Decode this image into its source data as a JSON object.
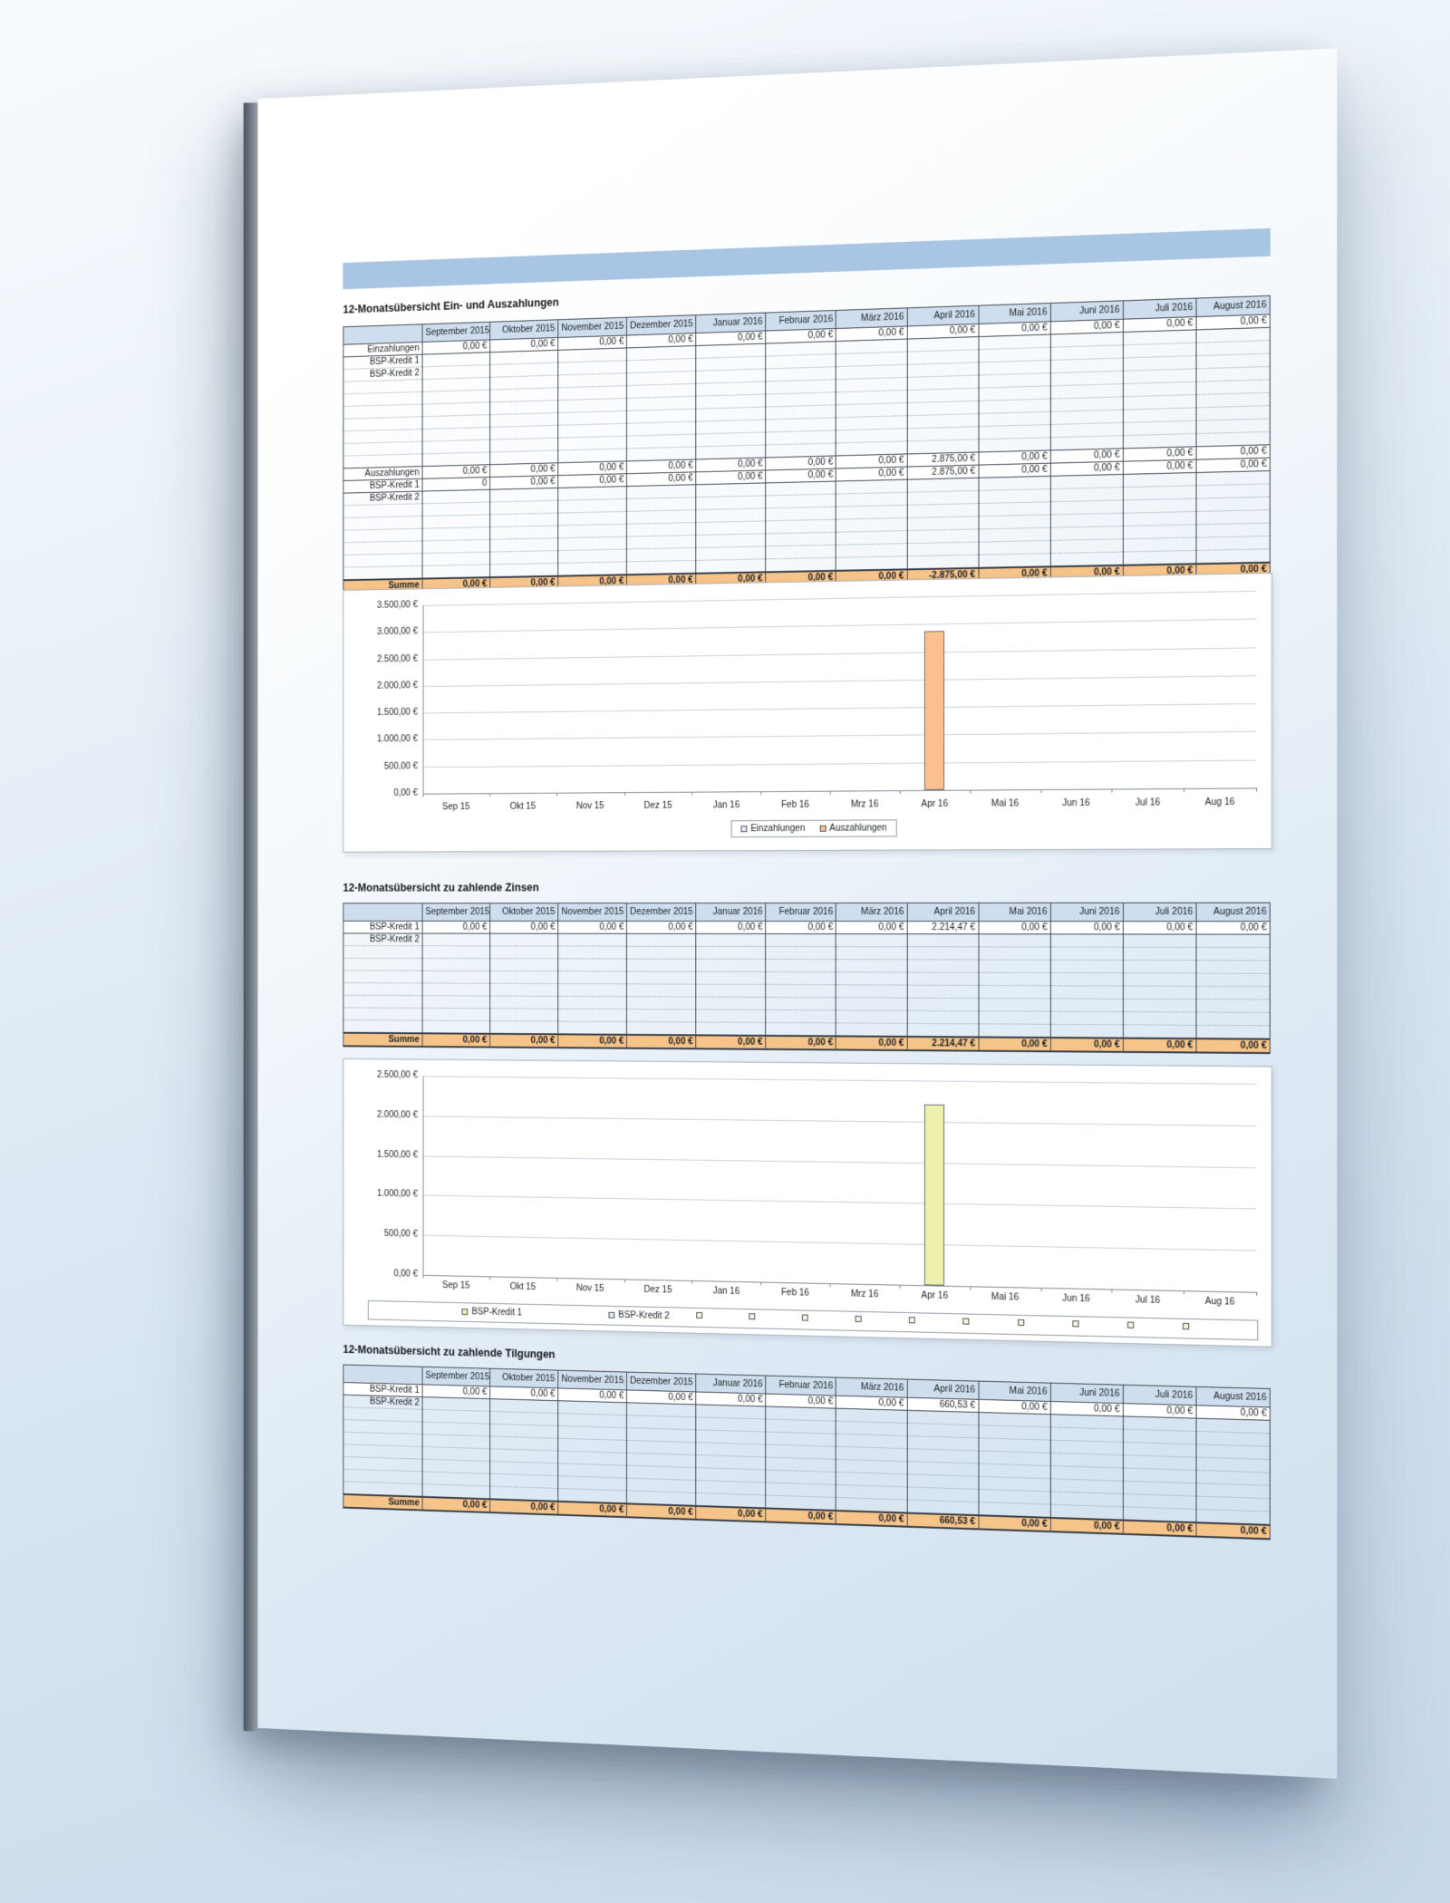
{
  "colors": {
    "band": "#a9c5e4",
    "table_header_bg": "#cfdeef",
    "sum_row_bg": "#f6c389",
    "bar_auszahlungen": "#fac090",
    "bar_bsp_kredit_1": "#eef0ae",
    "legend_marker_light": "#e4ebf4"
  },
  "months_long": [
    "September 2015",
    "Oktober 2015",
    "November 2015",
    "Dezember 2015",
    "Januar 2016",
    "Februar 2016",
    "März 2016",
    "April 2016",
    "Mai 2016",
    "Juni 2016",
    "Juli 2016",
    "August 2016"
  ],
  "tables": [
    {
      "title": "12-Monatsübersicht Ein- und Auszahlungen",
      "rows": [
        {
          "type": "value",
          "label": "Einzahlungen",
          "values": [
            "0,00 €",
            "0,00 €",
            "0,00 €",
            "0,00 €",
            "0,00 €",
            "0,00 €",
            "0,00 €",
            "0,00 €",
            "0,00 €",
            "0,00 €",
            "0,00 €",
            "0,00 €"
          ]
        },
        {
          "type": "label",
          "label": "BSP-Kredit 1"
        },
        {
          "type": "label",
          "label": "BSP-Kredit 2"
        },
        {
          "type": "filler"
        },
        {
          "type": "filler"
        },
        {
          "type": "filler"
        },
        {
          "type": "filler"
        },
        {
          "type": "filler"
        },
        {
          "type": "filler"
        },
        {
          "type": "filler"
        },
        {
          "type": "value",
          "label": "Auszahlungen",
          "values": [
            "0,00 €",
            "0,00 €",
            "0,00 €",
            "0,00 €",
            "0,00 €",
            "0,00 €",
            "0,00 €",
            "2.875,00 €",
            "0,00 €",
            "0,00 €",
            "0,00 €",
            "0,00 €"
          ]
        },
        {
          "type": "value",
          "label": "BSP-Kredit 1",
          "values": [
            "0",
            "0,00 €",
            "0,00 €",
            "0,00 €",
            "0,00 €",
            "0,00 €",
            "0,00 €",
            "2.875,00 €",
            "0,00 €",
            "0,00 €",
            "0,00 €",
            "0,00 €"
          ]
        },
        {
          "type": "label",
          "label": "BSP-Kredit 2"
        },
        {
          "type": "filler"
        },
        {
          "type": "filler"
        },
        {
          "type": "filler"
        },
        {
          "type": "filler"
        },
        {
          "type": "filler"
        },
        {
          "type": "filler"
        },
        {
          "type": "sum",
          "label": "Summe",
          "values": [
            "0,00 €",
            "0,00 €",
            "0,00 €",
            "0,00 €",
            "0,00 €",
            "0,00 €",
            "0,00 €",
            "-2.875,00 €",
            "0,00 €",
            "0,00 €",
            "0,00 €",
            "0,00 €"
          ]
        }
      ]
    },
    {
      "title": "12-Monatsübersicht zu zahlende Zinsen",
      "rows": [
        {
          "type": "value",
          "label": "BSP-Kredit 1",
          "values": [
            "0,00 €",
            "0,00 €",
            "0,00 €",
            "0,00 €",
            "0,00 €",
            "0,00 €",
            "0,00 €",
            "2.214,47 €",
            "0,00 €",
            "0,00 €",
            "0,00 €",
            "0,00 €"
          ]
        },
        {
          "type": "label",
          "label": "BSP-Kredit 2"
        },
        {
          "type": "filler"
        },
        {
          "type": "filler"
        },
        {
          "type": "filler"
        },
        {
          "type": "filler"
        },
        {
          "type": "filler"
        },
        {
          "type": "filler"
        },
        {
          "type": "filler"
        },
        {
          "type": "sum",
          "label": "Summe",
          "values": [
            "0,00 €",
            "0,00 €",
            "0,00 €",
            "0,00 €",
            "0,00 €",
            "0,00 €",
            "0,00 €",
            "2.214,47 €",
            "0,00 €",
            "0,00 €",
            "0,00 €",
            "0,00 €"
          ]
        }
      ]
    },
    {
      "title": "12-Monatsübersicht zu zahlende Tilgungen",
      "rows": [
        {
          "type": "value",
          "label": "BSP-Kredit 1",
          "values": [
            "0,00 €",
            "0,00 €",
            "0,00 €",
            "0,00 €",
            "0,00 €",
            "0,00 €",
            "0,00 €",
            "660,53 €",
            "0,00 €",
            "0,00 €",
            "0,00 €",
            "0,00 €"
          ]
        },
        {
          "type": "label",
          "label": "BSP-Kredit 2"
        },
        {
          "type": "filler"
        },
        {
          "type": "filler"
        },
        {
          "type": "filler"
        },
        {
          "type": "filler"
        },
        {
          "type": "filler"
        },
        {
          "type": "filler"
        },
        {
          "type": "filler"
        },
        {
          "type": "sum",
          "label": "Summe",
          "values": [
            "0,00 €",
            "0,00 €",
            "0,00 €",
            "0,00 €",
            "0,00 €",
            "0,00 €",
            "0,00 €",
            "660,53 €",
            "0,00 €",
            "0,00 €",
            "0,00 €",
            "0,00 €"
          ]
        }
      ]
    }
  ],
  "chart_data": [
    {
      "type": "bar",
      "title": "",
      "categories": [
        "Sep 15",
        "Okt 15",
        "Nov 15",
        "Dez 15",
        "Jan 16",
        "Feb 16",
        "Mrz 16",
        "Apr 16",
        "Mai 16",
        "Jun 16",
        "Jul 16",
        "Aug 16"
      ],
      "series": [
        {
          "name": "Einzahlungen",
          "color": "#e4ebf4",
          "values": [
            0,
            0,
            0,
            0,
            0,
            0,
            0,
            0,
            0,
            0,
            0,
            0
          ]
        },
        {
          "name": "Auszahlungen",
          "color": "#fac090",
          "values": [
            0,
            0,
            0,
            0,
            0,
            0,
            0,
            2875,
            0,
            0,
            0,
            0
          ]
        }
      ],
      "ylim": [
        0,
        3500
      ],
      "ytick_labels": [
        "3.500,00 €",
        "3.000,00 €",
        "2.500,00 €",
        "2.000,00 €",
        "1.500,00 €",
        "1.000,00 €",
        "500,00 €",
        "0,00 €"
      ],
      "grid": true,
      "legend_position": "bottom-center"
    },
    {
      "type": "bar",
      "title": "",
      "categories": [
        "Sep 15",
        "Okt 15",
        "Nov 15",
        "Dez 15",
        "Jan 16",
        "Feb 16",
        "Mrz 16",
        "Apr 16",
        "Mai 16",
        "Jun 16",
        "Jul 16",
        "Aug 16"
      ],
      "series": [
        {
          "name": "BSP-Kredit 1",
          "color": "#eef0ae",
          "values": [
            0,
            0,
            0,
            0,
            0,
            0,
            0,
            2214.47,
            0,
            0,
            0,
            0
          ]
        },
        {
          "name": "BSP-Kredit 2",
          "color": "#dfe8f2",
          "values": [
            0,
            0,
            0,
            0,
            0,
            0,
            0,
            0,
            0,
            0,
            0,
            0
          ]
        }
      ],
      "ylim": [
        0,
        2500
      ],
      "ytick_labels": [
        "2.500,00 €",
        "2.000,00 €",
        "1.500,00 €",
        "1.000,00 €",
        "500,00 €",
        "0,00 €"
      ],
      "grid": true,
      "legend_position": "bottom-wide",
      "legend_extra_markers": 10
    }
  ]
}
